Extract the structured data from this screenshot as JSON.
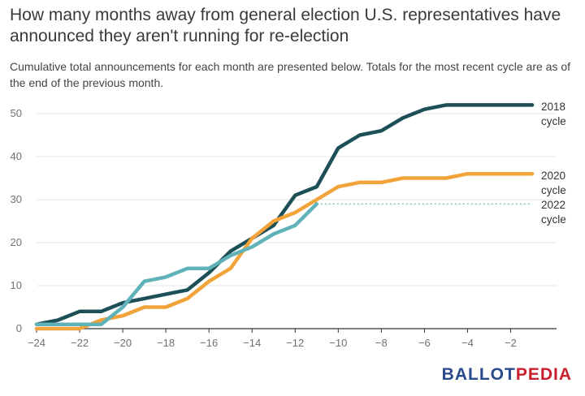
{
  "title": "How many months away from general election U.S. representatives have announced they aren't running for re-election",
  "subtitle": "Cumulative total announcements for each month are presented below. Totals for the most recent cycle are as of the end of the previous month.",
  "logo": {
    "part1": "BALLOT",
    "part2": "PEDIA"
  },
  "chart_data": {
    "type": "line",
    "title": "How many months away from general election U.S. representatives have announced they aren't running for re-election",
    "xlim": [
      -24,
      -1
    ],
    "ylim": [
      0,
      50
    ],
    "x_ticks": [
      -24,
      -22,
      -20,
      -18,
      -16,
      -14,
      -12,
      -10,
      -8,
      -6,
      -4,
      -2
    ],
    "y_ticks": [
      0,
      10,
      20,
      30,
      40,
      50
    ],
    "grid": "horizontal",
    "legend": "direct labels at right",
    "series": [
      {
        "name": "2018 cycle",
        "label_lines": [
          "2018",
          "cycle"
        ],
        "color": "#1d4f57",
        "x": [
          -24,
          -23,
          -22,
          -21,
          -20,
          -19,
          -18,
          -17,
          -16,
          -15,
          -14,
          -13,
          -12,
          -11,
          -10,
          -9,
          -8,
          -7,
          -6,
          -5,
          -4,
          -3,
          -2,
          -1
        ],
        "values": [
          1,
          2,
          4,
          4,
          6,
          7,
          8,
          9,
          13,
          18,
          21,
          24,
          31,
          33,
          42,
          45,
          46,
          49,
          51,
          52,
          52,
          52,
          52,
          52
        ]
      },
      {
        "name": "2020 cycle",
        "label_lines": [
          "2020",
          "cycle"
        ],
        "color": "#f2a33a",
        "x": [
          -24,
          -23,
          -22,
          -21,
          -20,
          -19,
          -18,
          -17,
          -16,
          -15,
          -14,
          -13,
          -12,
          -11,
          -10,
          -9,
          -8,
          -7,
          -6,
          -5,
          -4,
          -3,
          -2,
          -1
        ],
        "values": [
          0,
          0,
          0,
          2,
          3,
          5,
          5,
          7,
          11,
          14,
          21,
          25,
          27,
          30,
          33,
          34,
          34,
          35,
          35,
          35,
          36,
          36,
          36,
          36
        ]
      },
      {
        "name": "2022 cycle",
        "label_lines": [
          "2022",
          "cycle"
        ],
        "color": "#5fb3b8",
        "x": [
          -24,
          -23,
          -22,
          -21,
          -20,
          -19,
          -18,
          -17,
          -16,
          -15,
          -14,
          -13,
          -12,
          -11
        ],
        "values": [
          1,
          1,
          1,
          1,
          5,
          11,
          12,
          14,
          14,
          17,
          19,
          22,
          24,
          29
        ],
        "projection_value": 29
      }
    ]
  }
}
